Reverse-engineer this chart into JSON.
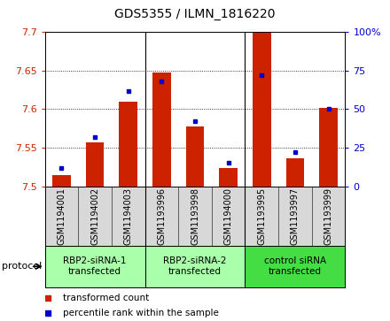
{
  "title": "GDS5355 / ILMN_1816220",
  "samples": [
    "GSM1194001",
    "GSM1194002",
    "GSM1194003",
    "GSM1193996",
    "GSM1193998",
    "GSM1194000",
    "GSM1193995",
    "GSM1193997",
    "GSM1193999"
  ],
  "red_values": [
    7.514,
    7.557,
    7.61,
    7.648,
    7.578,
    7.524,
    7.7,
    7.536,
    7.602
  ],
  "blue_values": [
    12,
    32,
    62,
    68,
    42,
    15,
    72,
    22,
    50
  ],
  "ylim_left": [
    7.5,
    7.7
  ],
  "ylim_right": [
    0,
    100
  ],
  "yticks_left": [
    7.5,
    7.55,
    7.6,
    7.65,
    7.7
  ],
  "yticks_right": [
    0,
    25,
    50,
    75,
    100
  ],
  "bar_color": "#cc2200",
  "dot_color": "#0000cc",
  "sample_bg_color": "#d8d8d8",
  "group_color_light": "#aaffaa",
  "group_color_dark": "#44dd44",
  "groups": [
    {
      "label": "RBP2-siRNA-1\ntransfected",
      "start": 0,
      "end": 3
    },
    {
      "label": "RBP2-siRNA-2\ntransfected",
      "start": 3,
      "end": 6
    },
    {
      "label": "control siRNA\ntransfected",
      "start": 6,
      "end": 9
    }
  ],
  "legend_red": "transformed count",
  "legend_blue": "percentile rank within the sample",
  "protocol_label": "protocol"
}
